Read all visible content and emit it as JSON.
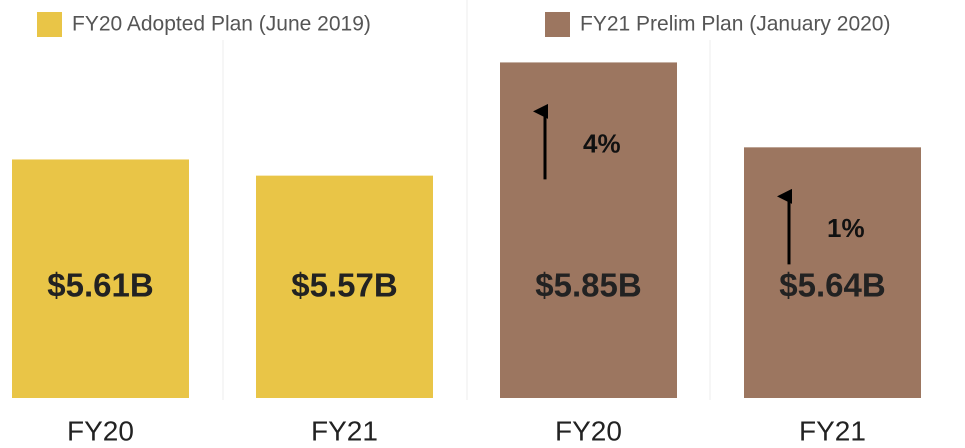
{
  "chart_data": {
    "type": "bar",
    "categories": [
      "FY20",
      "FY21"
    ],
    "series": [
      {
        "name": "FY20 Adopted Plan (June 2019)",
        "color": "#e9c547",
        "values": [
          5.61,
          5.57
        ],
        "value_labels": [
          "$5.61B",
          "$5.57B"
        ]
      },
      {
        "name": "FY21 Prelim Plan (January 2020)",
        "color": "#9c7660",
        "values": [
          5.85,
          5.64
        ],
        "value_labels": [
          "$5.85B",
          "$5.64B"
        ],
        "annotations": [
          "4%",
          "1%"
        ]
      }
    ],
    "ylim": [
      5.02,
      5.95
    ]
  }
}
